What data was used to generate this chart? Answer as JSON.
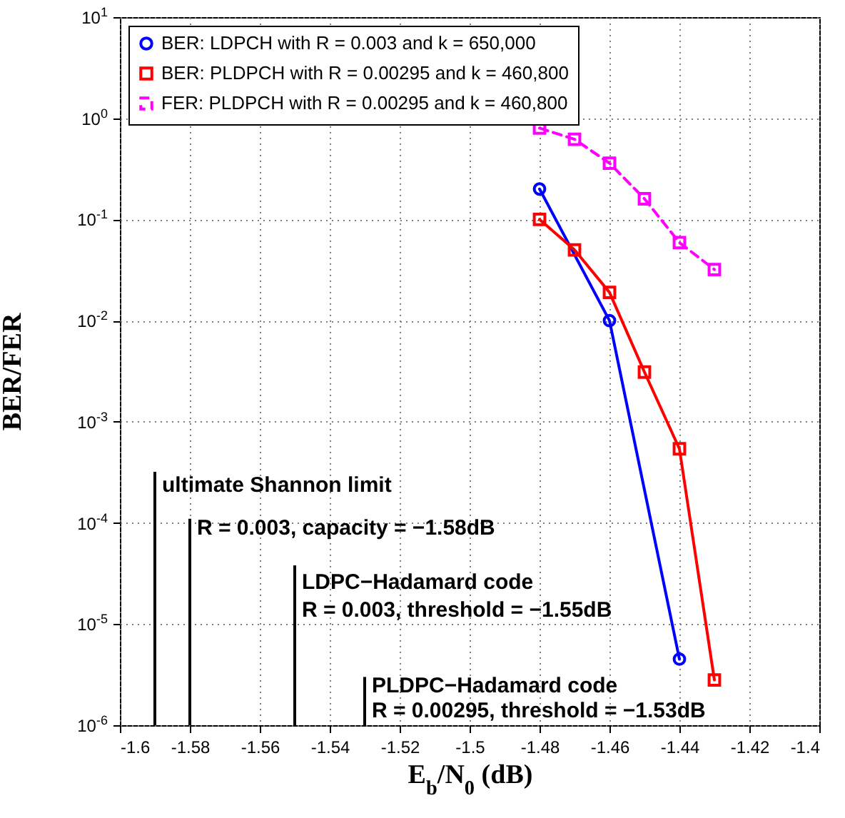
{
  "chart_data": {
    "type": "line",
    "xlabel": "E$_{b}$/N$_{0}$ (dB)",
    "ylabel": "BER/FER",
    "log": "y",
    "grid": true,
    "legend": "top left",
    "xlim": [
      -1.6,
      -1.4
    ],
    "xticks": [
      -1.6,
      -1.58,
      -1.56,
      -1.54,
      -1.52,
      -1.5,
      -1.48,
      -1.46,
      -1.44,
      -1.42,
      -1.4
    ],
    "ylim": [
      1e-06,
      10
    ],
    "yticks": [
      {
        "value": 1e-06,
        "label": "10$^{-6}$"
      },
      {
        "value": 1e-05,
        "label": "10$^{-5}$"
      },
      {
        "value": 0.0001,
        "label": "10$^{-4}$"
      },
      {
        "value": 0.001,
        "label": "10$^{-3}$"
      },
      {
        "value": 0.01,
        "label": "10$^{-2}$"
      },
      {
        "value": 0.1,
        "label": "10$^{-1}$"
      },
      {
        "value": 1,
        "label": "10$^{0}$"
      },
      {
        "value": 10,
        "label": "10$^{1}$"
      }
    ],
    "series": [
      {
        "name": "BER: LDPCH with R = 0.003 and k = 650,000",
        "color": "#0000ff",
        "marker": "circle",
        "line_style": "solid",
        "x": [
          -1.48,
          -1.46,
          -1.44
        ],
        "values": [
          0.2,
          0.01,
          4.5e-06
        ]
      },
      {
        "name": "BER: PLDPCH with R = 0.00295 and k = 460,800",
        "color": "#ff0000",
        "marker": "square",
        "line_style": "solid",
        "x": [
          -1.48,
          -1.47,
          -1.46,
          -1.45,
          -1.44,
          -1.43
        ],
        "values": [
          0.1,
          0.05,
          0.019,
          0.0031,
          0.00054,
          2.8e-06
        ]
      },
      {
        "name": "FER: PLDPCH with R = 0.00295 and k = 460,800",
        "color": "#ff00ff",
        "marker": "square",
        "line_style": "dashed",
        "x": [
          -1.48,
          -1.47,
          -1.46,
          -1.45,
          -1.44,
          -1.43
        ],
        "values": [
          0.8,
          0.62,
          0.36,
          0.16,
          0.059,
          0.032
        ]
      },
      {
        "color": "#000000",
        "marker": "none",
        "line_style": "solid",
        "x": [
          -1.59,
          -1.59
        ],
        "values": [
          1e-06,
          0.00032
        ]
      },
      {
        "color": "#000000",
        "marker": "none",
        "line_style": "solid",
        "x": [
          -1.58,
          -1.58
        ],
        "values": [
          1e-06,
          0.00011
        ]
      },
      {
        "color": "#000000",
        "marker": "none",
        "line_style": "solid",
        "x": [
          -1.55,
          -1.55
        ],
        "values": [
          1e-06,
          3.8e-05
        ]
      },
      {
        "color": "#000000",
        "marker": "none",
        "line_style": "solid",
        "x": [
          -1.53,
          -1.53
        ],
        "values": [
          1e-06,
          3e-06
        ]
      }
    ],
    "annotations": [
      {
        "text": "ultimate Shannon limit",
        "x": -1.59,
        "y": 0.00024
      },
      {
        "text": "R = 0.003, capacity = −1.58dB",
        "x": -1.58,
        "y": 9e-05
      },
      {
        "text": "LDPC−Hadamard code",
        "x": -1.55,
        "y": 2.6e-05
      },
      {
        "text": "R = 0.003, threshold = −1.55dB",
        "x": -1.55,
        "y": 1.4e-05
      },
      {
        "text": "PLDPC−Hadamard code",
        "x": -1.53,
        "y": 2.5e-06
      },
      {
        "text": "R = 0.00295, threshold = −1.53dB",
        "x": -1.53,
        "y": 1.4e-06
      }
    ]
  }
}
